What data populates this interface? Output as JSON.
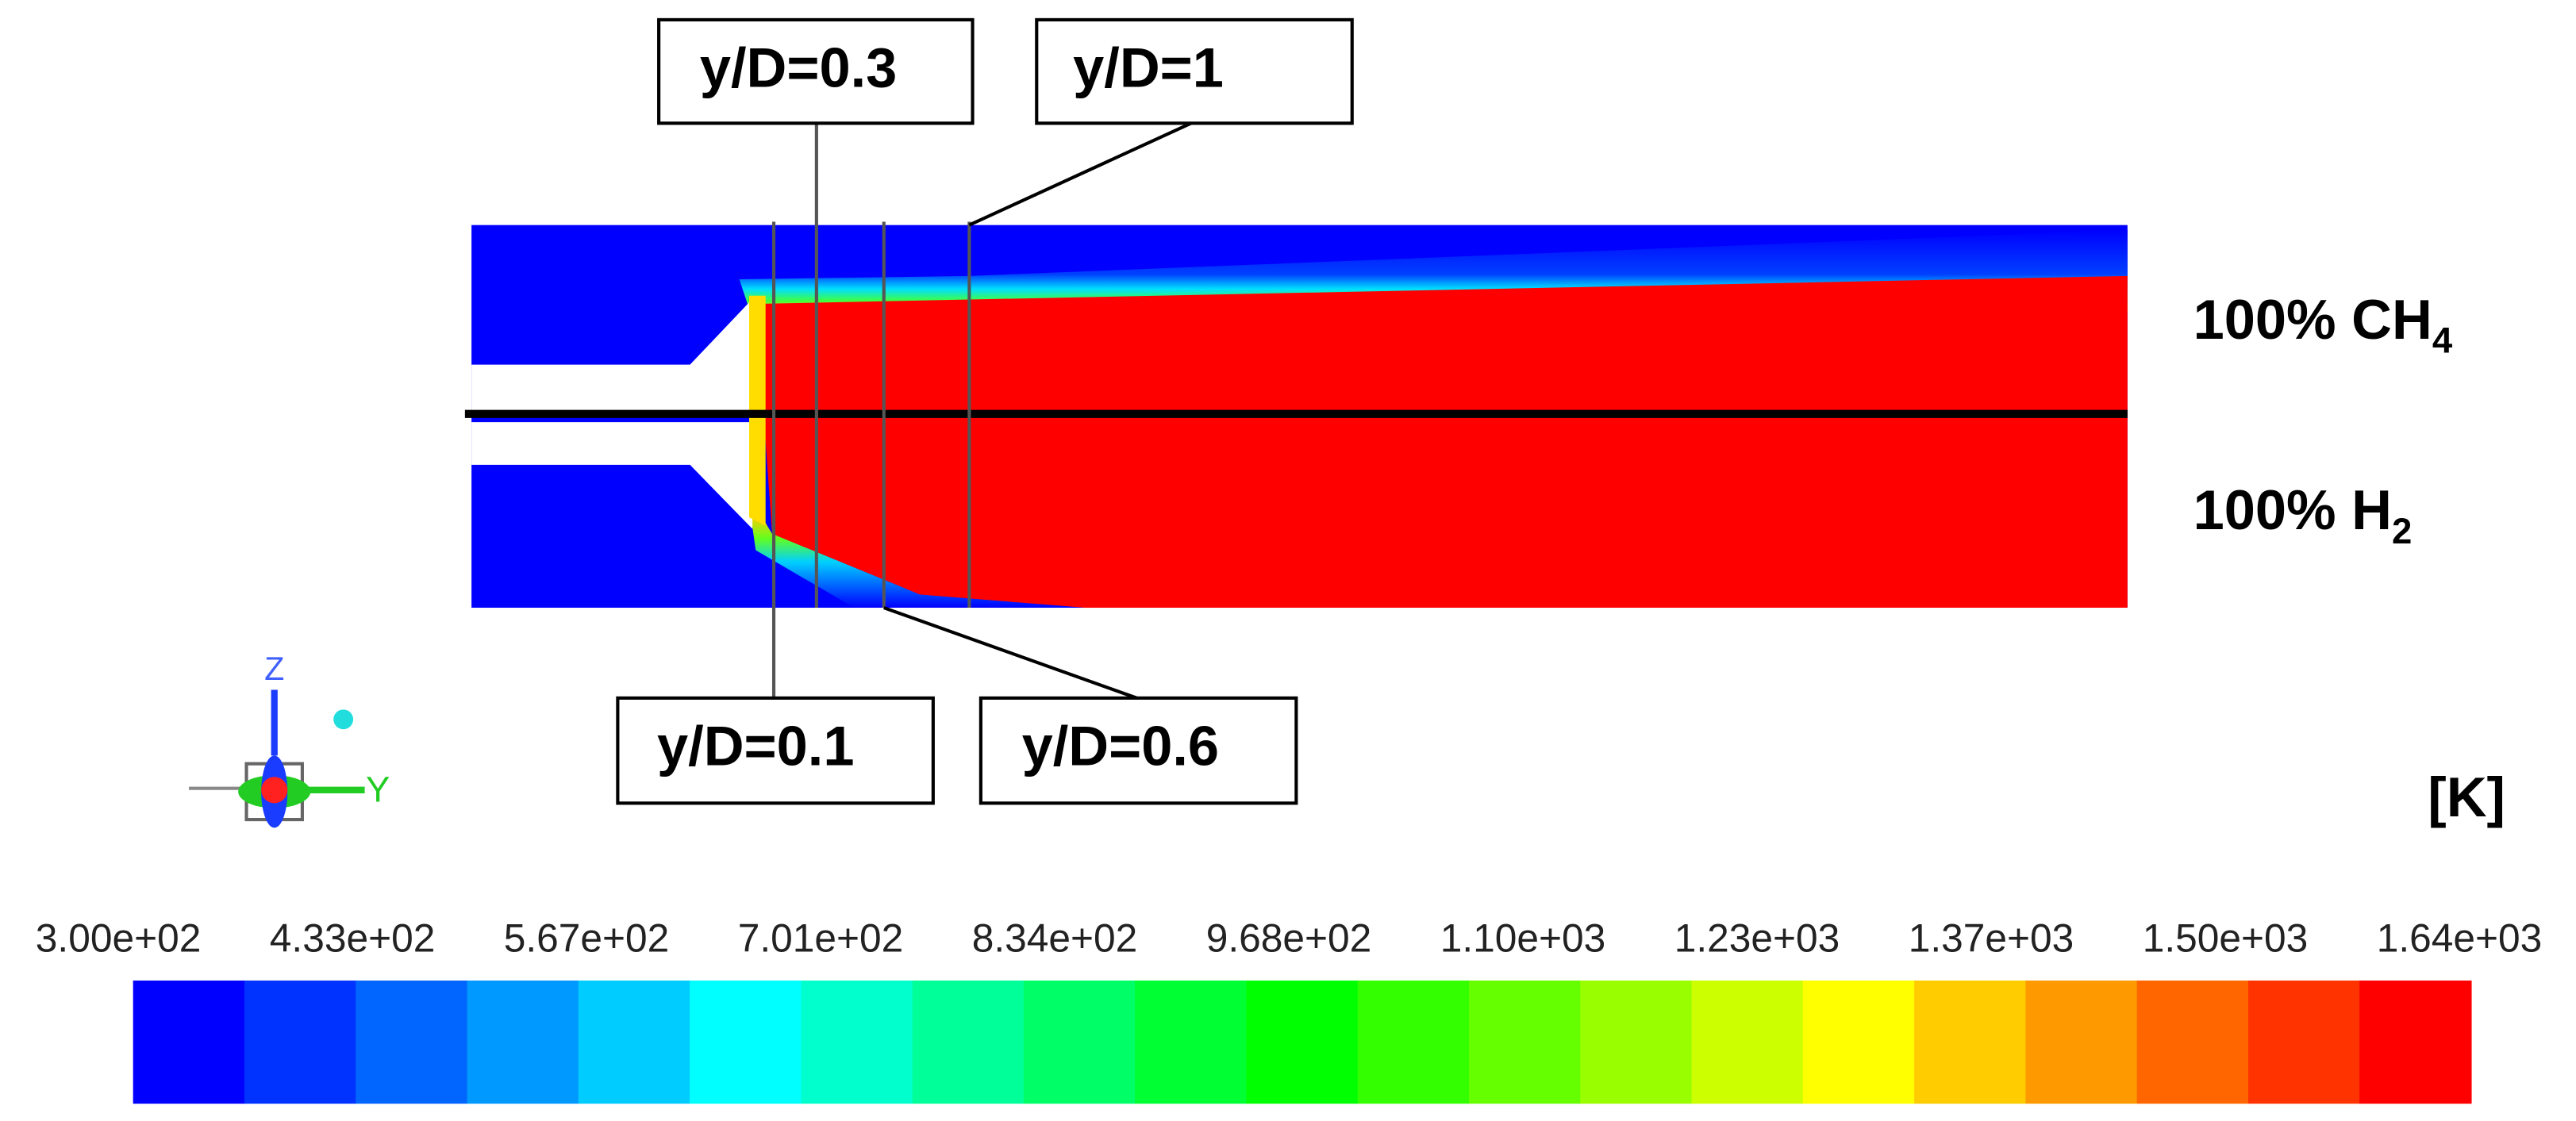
{
  "annotations": [
    "y/D=0.3",
    "y/D=1",
    "y/D=0.1",
    "y/D=0.6"
  ],
  "fuels": [
    {
      "name": "100% CH",
      "sub": "4"
    },
    {
      "name": "100% H",
      "sub": "2"
    }
  ],
  "axes": {
    "z": "Z",
    "y": "Y"
  },
  "colorbar": {
    "unit": "[K]",
    "ticks": [
      "3.00e+02",
      "4.33e+02",
      "5.67e+02",
      "7.01e+02",
      "8.34e+02",
      "9.68e+02",
      "1.10e+03",
      "1.23e+03",
      "1.37e+03",
      "1.50e+03",
      "1.64e+03"
    ]
  }
}
